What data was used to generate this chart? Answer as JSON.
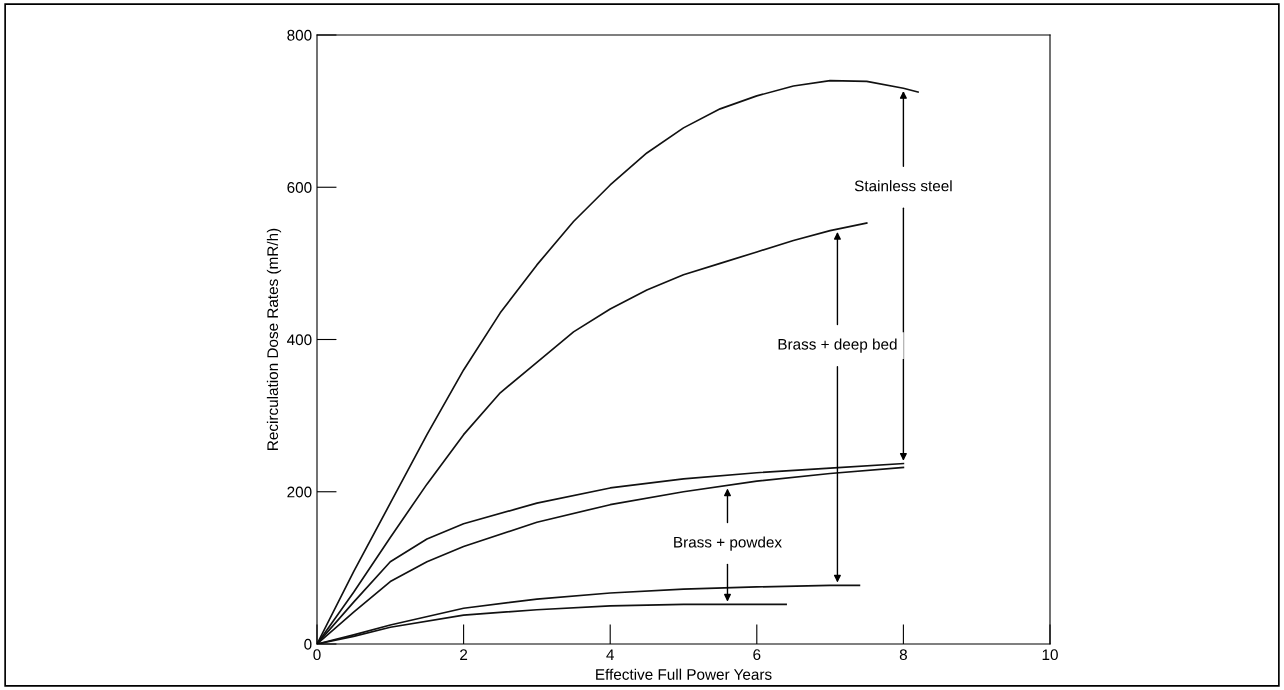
{
  "chart_data": {
    "type": "line",
    "xlabel": "Effective Full Power Years",
    "ylabel": "Recirculation Dose Rates (mR/h)",
    "xlim": [
      0,
      10
    ],
    "ylim": [
      0,
      800
    ],
    "xticks": [
      0,
      2,
      4,
      6,
      8,
      10
    ],
    "yticks": [
      0,
      200,
      400,
      600,
      800
    ],
    "grid": false,
    "legend": false,
    "marker": "none",
    "line_style": "solid",
    "series": [
      {
        "color": "#111111",
        "x": [
          0,
          0.5,
          1,
          1.5,
          2,
          2.5,
          3,
          3.5,
          4,
          4.5,
          5,
          5.5,
          6,
          6.5,
          7,
          7.5,
          8,
          8.2
        ],
        "values": [
          0,
          95,
          185,
          275,
          360,
          435,
          498,
          555,
          603,
          645,
          678,
          703,
          720,
          733,
          740,
          739,
          730,
          725
        ]
      },
      {
        "color": "#111111",
        "x": [
          0,
          0.5,
          1,
          1.5,
          2,
          2.5,
          3,
          3.5,
          4,
          4.5,
          5,
          5.5,
          6,
          6.5,
          7,
          7.5
        ],
        "values": [
          0,
          68,
          140,
          210,
          275,
          330,
          370,
          410,
          440,
          465,
          485,
          500,
          515,
          530,
          543,
          553
        ]
      },
      {
        "color": "#111111",
        "x": [
          0,
          0.5,
          1,
          1.5,
          2,
          3,
          4,
          5,
          6,
          7,
          8
        ],
        "values": [
          0,
          55,
          108,
          138,
          158,
          185,
          205,
          217,
          225,
          231,
          237
        ]
      },
      {
        "color": "#111111",
        "x": [
          0,
          0.5,
          1,
          1.5,
          2,
          3,
          4,
          5,
          6,
          7,
          8
        ],
        "values": [
          0,
          42,
          82,
          108,
          128,
          160,
          183,
          200,
          214,
          224,
          232
        ]
      },
      {
        "color": "#111111",
        "x": [
          0,
          0.5,
          1,
          2,
          3,
          4,
          5,
          6,
          7,
          7.4
        ],
        "values": [
          0,
          12,
          25,
          47,
          59,
          67,
          72,
          75,
          77,
          77
        ]
      },
      {
        "color": "#111111",
        "x": [
          0,
          0.5,
          1,
          2,
          3,
          4,
          5,
          6,
          6.4
        ],
        "values": [
          0,
          10,
          22,
          38,
          45,
          50,
          52,
          52,
          52
        ]
      }
    ],
    "annotations": [
      {
        "text": "Stainless steel",
        "x": 8,
        "y": 730
      },
      {
        "text": "Brass + deep bed",
        "x": 7.1,
        "y": 545
      },
      {
        "text": "Brass + powdex",
        "x": 5.6,
        "y": 208
      }
    ]
  }
}
